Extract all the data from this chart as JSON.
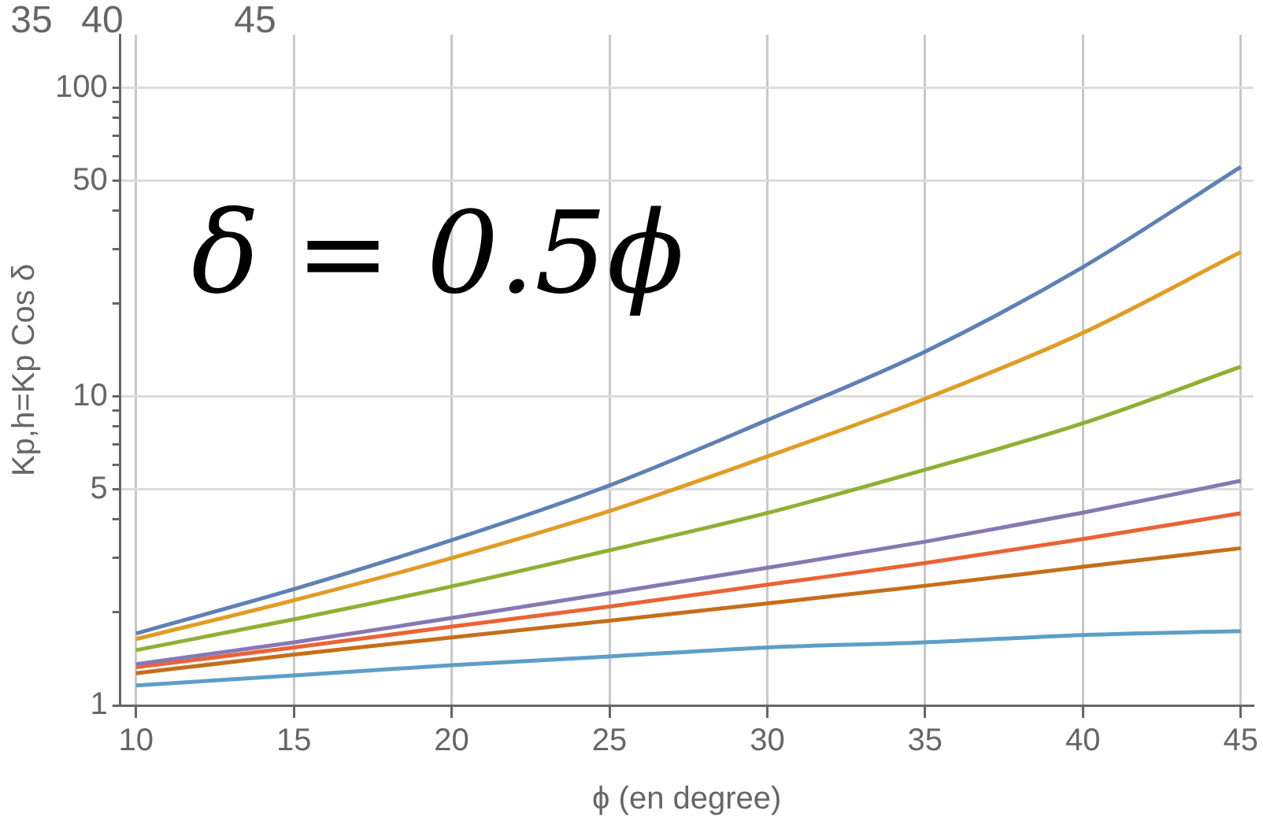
{
  "chart_data": {
    "type": "line",
    "xlabel": "ϕ (en degree)",
    "ylabel": "Kp,h=Kp Cos δ",
    "annotations": [
      "δ = 0.5ϕ",
      "35",
      "40",
      "45"
    ],
    "x": [
      10,
      15,
      20,
      25,
      30,
      35,
      40,
      45
    ],
    "series": [
      {
        "color": "#5e81b5",
        "values": [
          1.71,
          2.38,
          3.43,
          5.16,
          8.4,
          14.0,
          26.3,
          55.5
        ]
      },
      {
        "color": "#e19c24",
        "values": [
          1.64,
          2.19,
          3.0,
          4.26,
          6.4,
          9.85,
          16.1,
          29.4
        ]
      },
      {
        "color": "#8fb032",
        "values": [
          1.51,
          1.9,
          2.43,
          3.18,
          4.2,
          5.8,
          8.2,
          12.5
        ]
      },
      {
        "color": "#8778b3",
        "values": [
          1.36,
          1.6,
          1.92,
          2.31,
          2.79,
          3.39,
          4.21,
          5.34
        ]
      },
      {
        "color": "#eb6235",
        "values": [
          1.33,
          1.54,
          1.8,
          2.09,
          2.46,
          2.89,
          3.46,
          4.19
        ]
      },
      {
        "color": "#c56e1a",
        "values": [
          1.27,
          1.46,
          1.66,
          1.88,
          2.14,
          2.44,
          2.81,
          3.23
        ]
      },
      {
        "color": "#5d9ec7",
        "values": [
          1.16,
          1.25,
          1.35,
          1.44,
          1.54,
          1.6,
          1.69,
          1.74
        ]
      }
    ],
    "xlim": [
      9.5,
      45.4
    ],
    "ylim": [
      1,
      149
    ],
    "xticks": [
      10,
      15,
      20,
      25,
      30,
      35,
      40,
      45
    ],
    "yticks": [
      1,
      {
        "value": 2,
        "label": null
      },
      {
        "value": 3,
        "label": null
      },
      {
        "value": 4,
        "label": null
      },
      5,
      {
        "value": 6,
        "label": null
      },
      {
        "value": 7,
        "label": null
      },
      {
        "value": 8,
        "label": null
      },
      {
        "value": 9,
        "label": null
      },
      10,
      {
        "value": 20,
        "label": null
      },
      {
        "value": 30,
        "label": null
      },
      {
        "value": 40,
        "label": null
      },
      50,
      {
        "value": 60,
        "label": null
      },
      {
        "value": 70,
        "label": null
      },
      {
        "value": 80,
        "label": null
      },
      {
        "value": 90,
        "label": null
      },
      100
    ],
    "log": "y",
    "grid": true,
    "legend": false,
    "marker": "none",
    "line_style": "solid"
  }
}
